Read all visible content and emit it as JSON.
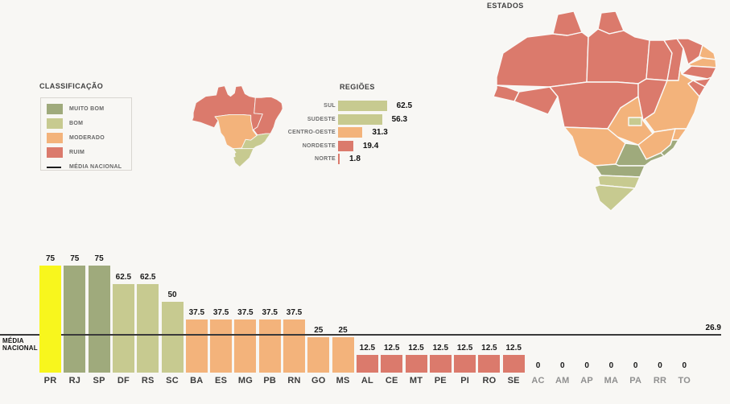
{
  "colors": {
    "muito_bom": "#9faa7c",
    "bom": "#c7ca90",
    "moderado": "#f3b37b",
    "ruim": "#db7a6c",
    "highlight": "#f8f61d",
    "line": "#3a3a3a"
  },
  "legend": {
    "title": "CLASSIFICAÇÃO",
    "items": [
      {
        "label": "MUITO BOM",
        "class": "muito_bom"
      },
      {
        "label": "BOM",
        "class": "bom"
      },
      {
        "label": "MODERADO",
        "class": "moderado"
      },
      {
        "label": "RUIM",
        "class": "ruim"
      }
    ],
    "line_label": "MÉDIA NACIONAL"
  },
  "regions_chart": {
    "title": "REGIÕES",
    "items": [
      {
        "label": "SUL",
        "value": 62.5,
        "display": "62.5",
        "class": "bom"
      },
      {
        "label": "SUDESTE",
        "value": 56.3,
        "display": "56.3",
        "class": "bom"
      },
      {
        "label": "CENTRO-OESTE",
        "value": 31.3,
        "display": "31.3",
        "class": "moderado"
      },
      {
        "label": "NORDESTE",
        "value": 19.4,
        "display": "19.4",
        "class": "ruim"
      },
      {
        "label": "NORTE",
        "value": 1.8,
        "display": "1.8",
        "class": "ruim"
      }
    ]
  },
  "regions_map": {
    "classes": {
      "norte": "ruim",
      "nordeste": "ruim",
      "centro_oeste": "moderado",
      "sudeste": "bom",
      "sul": "bom"
    }
  },
  "states_map": {
    "title": "ESTADOS",
    "classes": {
      "PR": "muito_bom",
      "RJ": "muito_bom",
      "SP": "muito_bom",
      "DF": "bom",
      "RS": "bom",
      "SC": "bom",
      "BA": "moderado",
      "ES": "moderado",
      "MG": "moderado",
      "PB": "moderado",
      "RN": "moderado",
      "GO": "moderado",
      "MS": "moderado",
      "AL": "ruim",
      "CE": "ruim",
      "MT": "ruim",
      "PE": "ruim",
      "PI": "ruim",
      "RO": "ruim",
      "SE": "ruim",
      "AC": "ruim",
      "AM": "ruim",
      "AP": "ruim",
      "MA": "ruim",
      "PA": "ruim",
      "RR": "ruim",
      "TO": "ruim"
    }
  },
  "bar_chart": {
    "media_label_line1": "MÉDIA",
    "media_label_line2": "NACIONAL",
    "media_value": 26.9,
    "media_display": "26.9",
    "bars": [
      {
        "label": "PR",
        "value": 75,
        "display": "75",
        "class": "highlight",
        "dim": false
      },
      {
        "label": "RJ",
        "value": 75,
        "display": "75",
        "class": "muito_bom",
        "dim": false
      },
      {
        "label": "SP",
        "value": 75,
        "display": "75",
        "class": "muito_bom",
        "dim": false
      },
      {
        "label": "DF",
        "value": 62.5,
        "display": "62.5",
        "class": "bom",
        "dim": false
      },
      {
        "label": "RS",
        "value": 62.5,
        "display": "62.5",
        "class": "bom",
        "dim": false
      },
      {
        "label": "SC",
        "value": 50,
        "display": "50",
        "class": "bom",
        "dim": false
      },
      {
        "label": "BA",
        "value": 37.5,
        "display": "37.5",
        "class": "moderado",
        "dim": false
      },
      {
        "label": "ES",
        "value": 37.5,
        "display": "37.5",
        "class": "moderado",
        "dim": false
      },
      {
        "label": "MG",
        "value": 37.5,
        "display": "37.5",
        "class": "moderado",
        "dim": false
      },
      {
        "label": "PB",
        "value": 37.5,
        "display": "37.5",
        "class": "moderado",
        "dim": false
      },
      {
        "label": "RN",
        "value": 37.5,
        "display": "37.5",
        "class": "moderado",
        "dim": false
      },
      {
        "label": "GO",
        "value": 25,
        "display": "25",
        "class": "moderado",
        "dim": false
      },
      {
        "label": "MS",
        "value": 25,
        "display": "25",
        "class": "moderado",
        "dim": false
      },
      {
        "label": "AL",
        "value": 12.5,
        "display": "12.5",
        "class": "ruim",
        "dim": false
      },
      {
        "label": "CE",
        "value": 12.5,
        "display": "12.5",
        "class": "ruim",
        "dim": false
      },
      {
        "label": "MT",
        "value": 12.5,
        "display": "12.5",
        "class": "ruim",
        "dim": false
      },
      {
        "label": "PE",
        "value": 12.5,
        "display": "12.5",
        "class": "ruim",
        "dim": false
      },
      {
        "label": "PI",
        "value": 12.5,
        "display": "12.5",
        "class": "ruim",
        "dim": false
      },
      {
        "label": "RO",
        "value": 12.5,
        "display": "12.5",
        "class": "ruim",
        "dim": false
      },
      {
        "label": "SE",
        "value": 12.5,
        "display": "12.5",
        "class": "ruim",
        "dim": false
      },
      {
        "label": "AC",
        "value": 0,
        "display": "0",
        "class": "ruim",
        "dim": true
      },
      {
        "label": "AM",
        "value": 0,
        "display": "0",
        "class": "ruim",
        "dim": true
      },
      {
        "label": "AP",
        "value": 0,
        "display": "0",
        "class": "ruim",
        "dim": true
      },
      {
        "label": "MA",
        "value": 0,
        "display": "0",
        "class": "ruim",
        "dim": true
      },
      {
        "label": "PA",
        "value": 0,
        "display": "0",
        "class": "ruim",
        "dim": true
      },
      {
        "label": "RR",
        "value": 0,
        "display": "0",
        "class": "ruim",
        "dim": true
      },
      {
        "label": "TO",
        "value": 0,
        "display": "0",
        "class": "ruim",
        "dim": true
      }
    ]
  },
  "chart_data": [
    {
      "type": "bar",
      "title": "ESTADOS (bar chart)",
      "categories": [
        "PR",
        "RJ",
        "SP",
        "DF",
        "RS",
        "SC",
        "BA",
        "ES",
        "MG",
        "PB",
        "RN",
        "GO",
        "MS",
        "AL",
        "CE",
        "MT",
        "PE",
        "PI",
        "RO",
        "SE",
        "AC",
        "AM",
        "AP",
        "MA",
        "PA",
        "RR",
        "TO"
      ],
      "values": [
        75,
        75,
        75,
        62.5,
        62.5,
        50,
        37.5,
        37.5,
        37.5,
        37.5,
        37.5,
        25,
        25,
        12.5,
        12.5,
        12.5,
        12.5,
        12.5,
        12.5,
        12.5,
        0,
        0,
        0,
        0,
        0,
        0,
        0
      ],
      "reference_line": {
        "label": "MÉDIA NACIONAL",
        "value": 26.9
      },
      "xlabel": "",
      "ylabel": "",
      "ylim": [
        0,
        75
      ],
      "grid": false,
      "legend_position": "none"
    },
    {
      "type": "bar",
      "title": "REGIÕES",
      "categories": [
        "SUL",
        "SUDESTE",
        "CENTRO-OESTE",
        "NORDESTE",
        "NORTE"
      ],
      "values": [
        62.5,
        56.3,
        31.3,
        19.4,
        1.8
      ],
      "orientation": "horizontal",
      "xlabel": "",
      "ylabel": "",
      "xlim": [
        0,
        100
      ],
      "grid": false,
      "legend_position": "none"
    }
  ]
}
